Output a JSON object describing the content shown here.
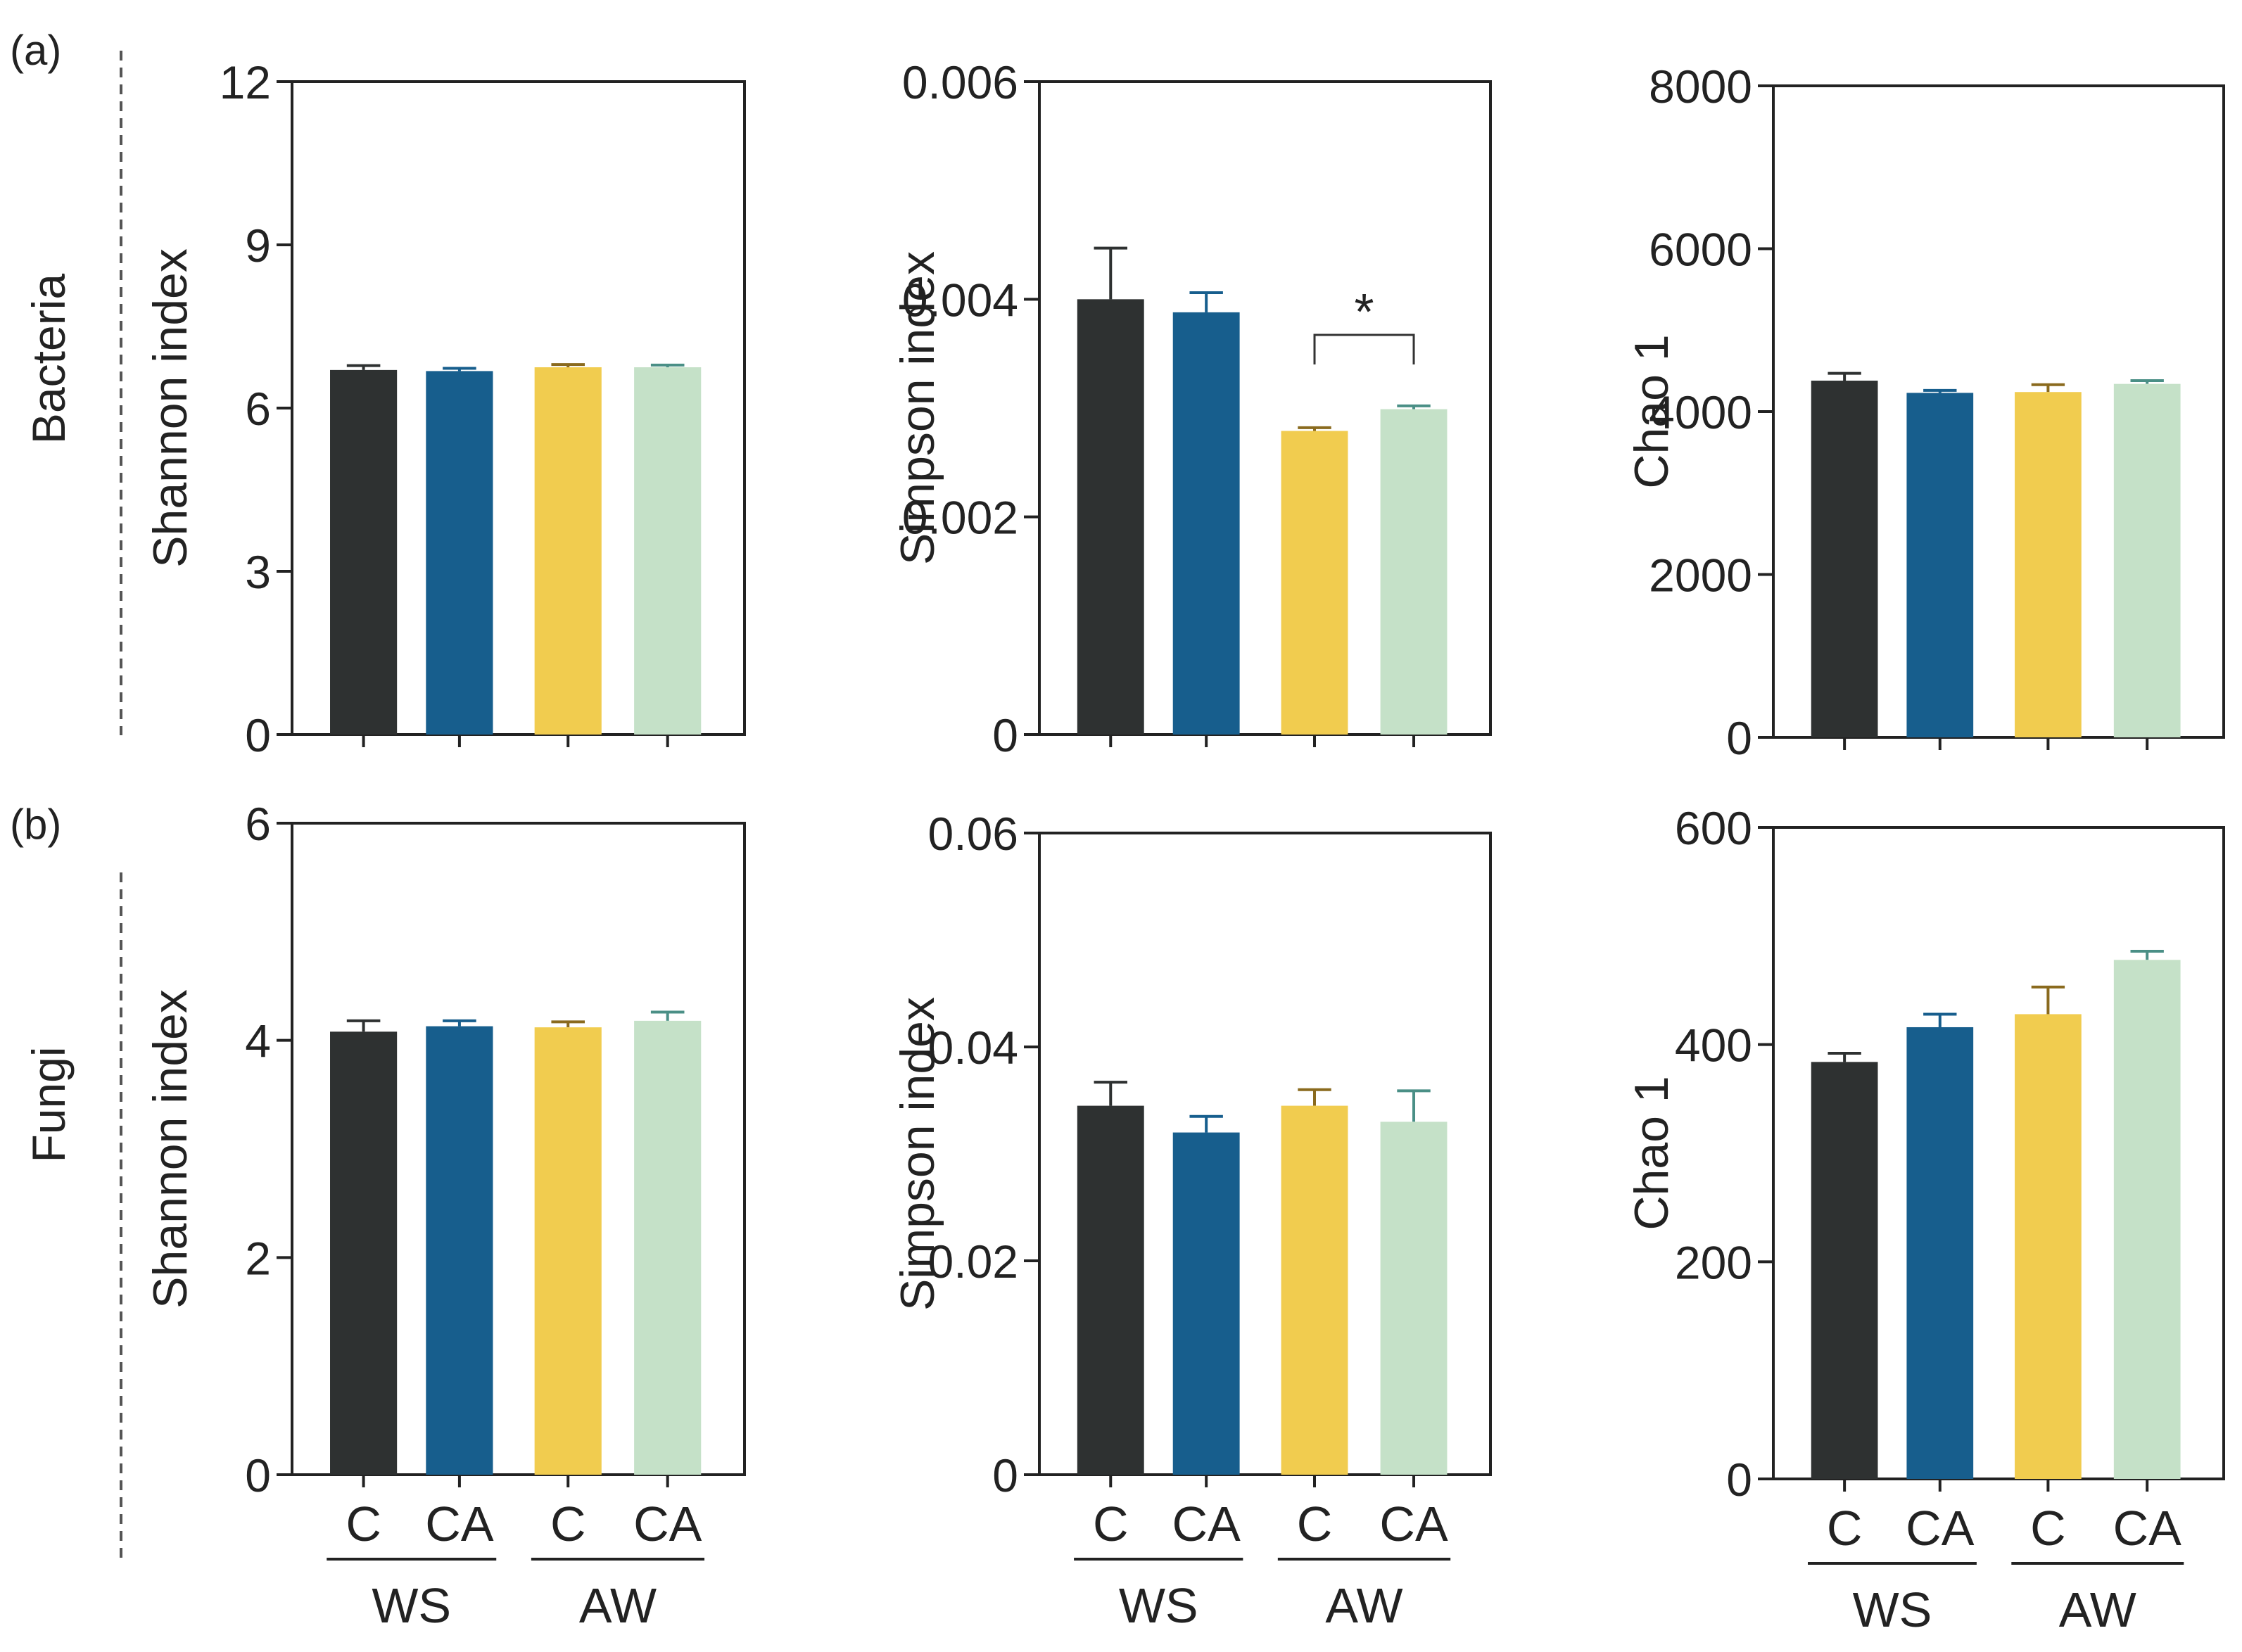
{
  "figure": {
    "panel_labels": [
      "(a)",
      "(b)"
    ],
    "row_labels": [
      "Bacteria",
      "Fungi"
    ],
    "significance": "*"
  },
  "colors": {
    "WS-C": "#2e3131",
    "WS-CA": "#175e8d",
    "AW-C": "#f1cc4f",
    "AW-CA": "#c5e1c8",
    "err_WS-C": "#2e3131",
    "err_WS-CA": "#175e8d",
    "err_AW-C": "#8a6a1e",
    "err_AW-CA": "#4a8f86"
  },
  "chart_data": [
    {
      "type": "bar",
      "row": "Bacteria",
      "ylabel": "Shannon index",
      "ylim": [
        0,
        12
      ],
      "yticks": [
        "0",
        "3",
        "6",
        "9",
        "12"
      ],
      "ytick_values": [
        0,
        3,
        6,
        9,
        12
      ],
      "categories": [
        "C",
        "CA",
        "C",
        "CA"
      ],
      "groups": [],
      "series_keys": [
        "WS-C",
        "WS-CA",
        "AW-C",
        "AW-CA"
      ],
      "values": [
        6.7,
        6.68,
        6.75,
        6.75
      ],
      "errors": [
        0.08,
        0.05,
        0.05,
        0.04
      ],
      "significance": null
    },
    {
      "type": "bar",
      "row": "Bacteria",
      "ylabel": "Simpson index",
      "ylim": [
        0,
        0.006
      ],
      "yticks": [
        "0",
        "0.002",
        "0.004",
        "0.006"
      ],
      "ytick_values": [
        0,
        0.002,
        0.004,
        0.006
      ],
      "categories": [
        "C",
        "CA",
        "C",
        "CA"
      ],
      "groups": [],
      "series_keys": [
        "WS-C",
        "WS-CA",
        "AW-C",
        "AW-CA"
      ],
      "values": [
        0.004,
        0.00388,
        0.00279,
        0.00299
      ],
      "errors": [
        0.00047,
        0.00018,
        3e-05,
        3e-05
      ],
      "significance": {
        "between": [
          2,
          3
        ],
        "label": "*"
      }
    },
    {
      "type": "bar",
      "row": "Bacteria",
      "ylabel": "Chao 1",
      "ylim": [
        0,
        8000
      ],
      "yticks": [
        "0",
        "2000",
        "4000",
        "6000",
        "8000"
      ],
      "ytick_values": [
        0,
        2000,
        4000,
        6000,
        8000
      ],
      "categories": [
        "C",
        "CA",
        "C",
        "CA"
      ],
      "groups": [],
      "series_keys": [
        "WS-C",
        "WS-CA",
        "AW-C",
        "AW-CA"
      ],
      "values": [
        4380,
        4230,
        4240,
        4340
      ],
      "errors": [
        90,
        30,
        90,
        40
      ],
      "significance": null
    },
    {
      "type": "bar",
      "row": "Fungi",
      "ylabel": "Shannon index",
      "ylim": [
        0,
        6
      ],
      "yticks": [
        "0",
        "2",
        "4",
        "6"
      ],
      "ytick_values": [
        0,
        2,
        4,
        6
      ],
      "categories": [
        "C",
        "CA",
        "C",
        "CA"
      ],
      "groups": [
        "WS",
        "AW"
      ],
      "series_keys": [
        "WS-C",
        "WS-CA",
        "AW-C",
        "AW-CA"
      ],
      "values": [
        4.08,
        4.13,
        4.12,
        4.18
      ],
      "errors": [
        0.1,
        0.05,
        0.05,
        0.08
      ],
      "significance": null
    },
    {
      "type": "bar",
      "row": "Fungi",
      "ylabel": "Simpson index",
      "ylim": [
        0,
        0.06
      ],
      "yticks": [
        "0",
        "0.02",
        "0.04",
        "0.06"
      ],
      "ytick_values": [
        0,
        0.02,
        0.04,
        0.06
      ],
      "categories": [
        "C",
        "CA",
        "C",
        "CA"
      ],
      "groups": [
        "WS",
        "AW"
      ],
      "series_keys": [
        "WS-C",
        "WS-CA",
        "AW-C",
        "AW-CA"
      ],
      "values": [
        0.0345,
        0.032,
        0.0345,
        0.033
      ],
      "errors": [
        0.0022,
        0.0015,
        0.0015,
        0.0029
      ],
      "significance": null
    },
    {
      "type": "bar",
      "row": "Fungi",
      "ylabel": "Chao 1",
      "ylim": [
        0,
        600
      ],
      "yticks": [
        "0",
        "200",
        "400",
        "600"
      ],
      "ytick_values": [
        0,
        200,
        400,
        600
      ],
      "categories": [
        "C",
        "CA",
        "C",
        "CA"
      ],
      "groups": [
        "WS",
        "AW"
      ],
      "series_keys": [
        "WS-C",
        "WS-CA",
        "AW-C",
        "AW-CA"
      ],
      "values": [
        384,
        416,
        428,
        478
      ],
      "errors": [
        8,
        12,
        25,
        8
      ],
      "significance": null
    }
  ]
}
